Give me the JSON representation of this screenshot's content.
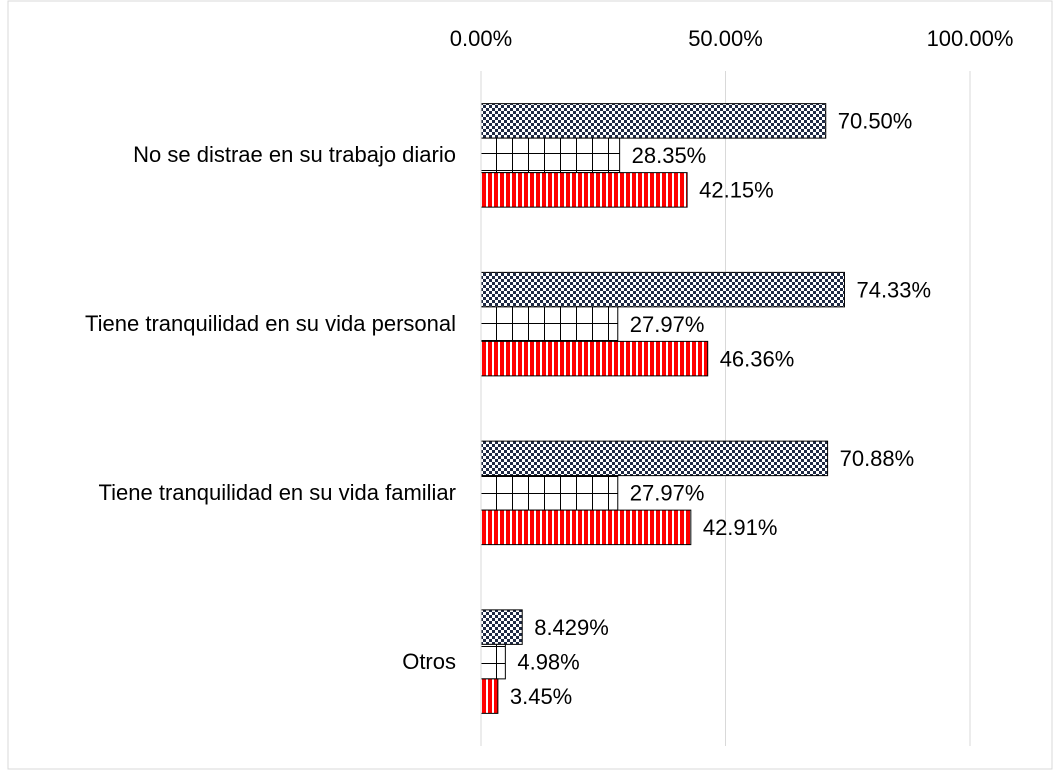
{
  "chart_data": {
    "type": "bar",
    "orientation": "horizontal",
    "categories": [
      "No se distrae en su trabajo diario",
      "Tiene tranquilidad en su vida personal",
      "Tiene tranquilidad en su vida familiar",
      "Otros"
    ],
    "series": [
      {
        "color": "#1f2a44",
        "pattern": "dots",
        "values": [
          70.5,
          74.33,
          70.88,
          8.429
        ],
        "value_labels": [
          "70.50%",
          "74.33%",
          "70.88%",
          "8.429%"
        ]
      },
      {
        "color": "#000000",
        "pattern": "grid",
        "values": [
          28.35,
          27.97,
          27.97,
          4.98
        ],
        "value_labels": [
          "28.35%",
          "27.97%",
          "27.97%",
          "4.98%"
        ]
      },
      {
        "color": "#ff0000",
        "pattern": "vertical-stripes",
        "values": [
          42.15,
          46.36,
          42.91,
          3.45
        ],
        "value_labels": [
          "42.15%",
          "46.36%",
          "42.91%",
          "3.45%"
        ]
      }
    ],
    "xlim": [
      0,
      100
    ],
    "xticks": [
      {
        "value": 0,
        "label": "0.00%"
      },
      {
        "value": 50,
        "label": "50.00%"
      },
      {
        "value": 100,
        "label": "100.00%"
      }
    ],
    "grid": true
  }
}
